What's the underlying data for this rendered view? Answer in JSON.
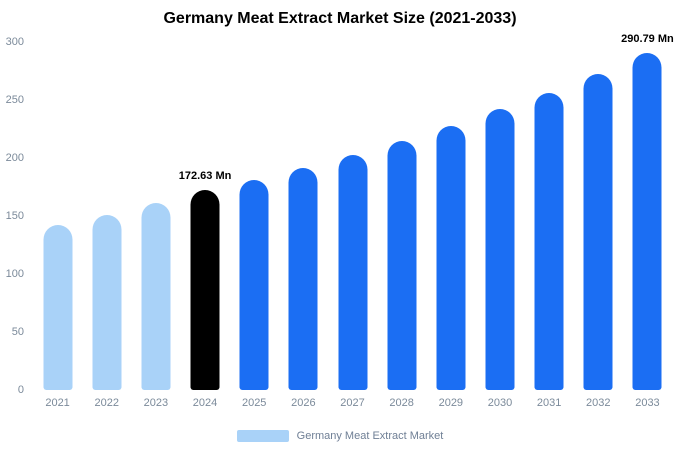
{
  "chart_data": {
    "type": "bar",
    "title": "Germany Meat Extract Market Size (2021-2033)",
    "xlabel": "",
    "ylabel": "",
    "ylim": [
      0,
      300
    ],
    "yticks": [
      0,
      50,
      100,
      150,
      200,
      250,
      300
    ],
    "grid": false,
    "legend_position": "bottom",
    "categories": [
      "2021",
      "2022",
      "2023",
      "2024",
      "2025",
      "2026",
      "2027",
      "2028",
      "2029",
      "2030",
      "2031",
      "2032",
      "2033"
    ],
    "values": [
      142,
      151,
      161,
      172.63,
      181,
      191,
      203,
      215,
      228,
      242,
      256,
      272,
      290.79
    ],
    "bar_color_keys": [
      "light_blue",
      "light_blue",
      "light_blue",
      "black",
      "blue",
      "blue",
      "blue",
      "blue",
      "blue",
      "blue",
      "blue",
      "blue",
      "blue"
    ],
    "annotations": [
      {
        "index": 3,
        "text": "172.63 Mn"
      },
      {
        "index": 12,
        "text": "290.79 Mn"
      }
    ],
    "legend": [
      {
        "label": "Germany Meat Extract Market",
        "color": "#a9d2f8"
      }
    ],
    "colors": {
      "light_blue": "#a9d2f8",
      "blue": "#1b6ef3",
      "black": "#000000",
      "axis_text": "#7b8a9a",
      "title_text": "#000000"
    }
  }
}
